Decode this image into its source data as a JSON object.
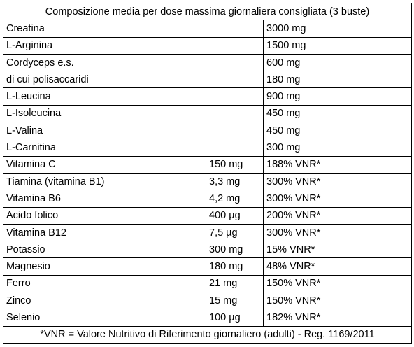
{
  "table": {
    "caption": "Composizione media per dose massima giornaliera consigliata (3 buste)",
    "rows": [
      [
        "Creatina",
        "",
        "3000 mg"
      ],
      [
        "L-Arginina",
        "",
        "1500 mg"
      ],
      [
        "Cordyceps e.s.",
        "",
        "600 mg"
      ],
      [
        "di cui polisaccaridi",
        "",
        "180 mg"
      ],
      [
        "L-Leucina",
        "",
        "900 mg"
      ],
      [
        "L-Isoleucina",
        "",
        "450 mg"
      ],
      [
        "L-Valina",
        "",
        "450 mg"
      ],
      [
        "L-Carnitina",
        "",
        "300 mg"
      ],
      [
        "Vitamina C",
        "150 mg",
        "188% VNR*"
      ],
      [
        "Tiamina (vitamina B1)",
        "3,3 mg",
        "300% VNR*"
      ],
      [
        "Vitamina B6",
        "4,2 mg",
        "300% VNR*"
      ],
      [
        "Acido folico",
        "400 µg",
        "200% VNR*"
      ],
      [
        "Vitamina B12",
        "7,5 µg",
        "300% VNR*"
      ],
      [
        "Potassio",
        "300 mg",
        "15% VNR*"
      ],
      [
        "Magnesio",
        "180 mg",
        "48% VNR*"
      ],
      [
        "Ferro",
        "21 mg",
        "150% VNR*"
      ],
      [
        "Zinco",
        "15 mg",
        "150% VNR*"
      ],
      [
        "Selenio",
        "100 µg",
        "182% VNR*"
      ]
    ],
    "footnote": "*VNR = Valore Nutritivo di Riferimento giornaliero (adulti) - Reg. 1169/2011"
  },
  "colors": {
    "border": "#000000",
    "text": "#000000",
    "background": "#ffffff"
  }
}
